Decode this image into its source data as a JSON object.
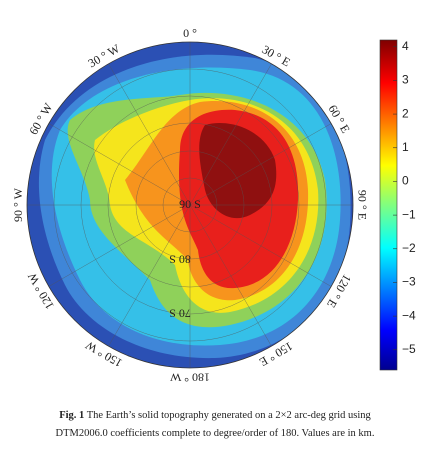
{
  "map": {
    "longitude_labels": [
      "0 °",
      "30 ° E",
      "60 ° E",
      "90 ° E",
      "120 ° E",
      "150 ° E",
      "180 ° W",
      "150 ° W",
      "120 ° W",
      "90 ° W",
      "60 ° W",
      "30 ° W"
    ],
    "latitude_labels": [
      "90 S",
      "80 S",
      "70 S"
    ],
    "colorbar": {
      "ylim": [
        -5.6,
        4.2
      ],
      "yticks": [
        4,
        3,
        2,
        1,
        0,
        {
          "value": -1,
          "label": "−1"
        },
        {
          "value": -2,
          "label": "−2"
        },
        {
          "value": -3,
          "label": "−3"
        },
        {
          "value": -4,
          "label": "−4"
        },
        {
          "value": -5,
          "label": "−5"
        }
      ]
    },
    "caption": {
      "label": "Fig. 1",
      "lines": [
        " The Earth’s solid topography generated on a 2×2 arc-deg grid using",
        "DTM2006.0 coefficients complete to degree/order of 180. Values are in km."
      ]
    }
  }
}
